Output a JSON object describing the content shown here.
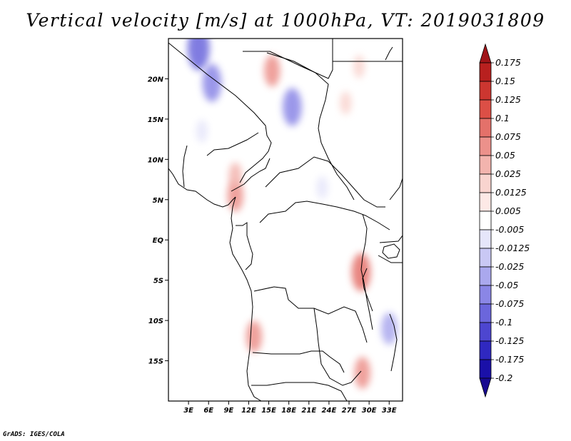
{
  "chart_data": {
    "type": "heatmap",
    "title": "Vertical velocity [m/s] at 1000hPa, VT: 2019031809",
    "xlabel": "",
    "ylabel": "",
    "x_ticks": [
      "3E",
      "6E",
      "9E",
      "12E",
      "15E",
      "18E",
      "21E",
      "24E",
      "27E",
      "30E",
      "33E"
    ],
    "y_ticks": [
      "20N",
      "15N",
      "10N",
      "5N",
      "EQ",
      "5S",
      "10S",
      "15S"
    ],
    "x_tick_values": [
      3,
      6,
      9,
      12,
      15,
      18,
      21,
      24,
      27,
      30,
      33
    ],
    "y_tick_values": [
      20,
      15,
      10,
      5,
      0,
      -5,
      -10,
      -15
    ],
    "xlim": [
      0,
      35
    ],
    "ylim": [
      -20,
      25
    ],
    "colorbar": {
      "levels": [
        "0.175",
        "0.15",
        "0.125",
        "0.1",
        "0.075",
        "0.05",
        "0.025",
        "0.0125",
        "0.005",
        "-0.005",
        "-0.0125",
        "-0.025",
        "-0.05",
        "-0.075",
        "-0.1",
        "-0.125",
        "-0.175",
        "-0.2"
      ],
      "colors": [
        "#a01418",
        "#b8201f",
        "#cc3630",
        "#dc4f46",
        "#e4716a",
        "#ec918b",
        "#f3b4ae",
        "#f9d4cf",
        "#fde9e6",
        "#ffffff",
        "#e6e6fa",
        "#c9c8f4",
        "#aaa8ee",
        "#8a86e6",
        "#6b66dc",
        "#4d46d0",
        "#2f28c0",
        "#1a10a8",
        "#180a90"
      ]
    },
    "anomalies": [
      {
        "lon": 4.5,
        "lat": 23.8,
        "value": -0.1
      },
      {
        "lon": 6.5,
        "lat": 19.5,
        "value": -0.075
      },
      {
        "lon": 18.5,
        "lat": 16.5,
        "value": -0.075
      },
      {
        "lon": 15.5,
        "lat": 21.0,
        "value": 0.05
      },
      {
        "lon": 28.8,
        "lat": -4.0,
        "value": 0.075
      },
      {
        "lon": 33.0,
        "lat": -11.0,
        "value": -0.05
      },
      {
        "lon": 10.0,
        "lat": 5.5,
        "value": 0.05
      },
      {
        "lon": 12.8,
        "lat": -12.0,
        "value": 0.05
      },
      {
        "lon": 29.0,
        "lat": -16.5,
        "value": 0.05
      },
      {
        "lon": 10.0,
        "lat": 8.0,
        "value": 0.025
      },
      {
        "lon": 26.5,
        "lat": 17.0,
        "value": 0.0125
      },
      {
        "lon": 28.5,
        "lat": 21.5,
        "value": 0.0125
      },
      {
        "lon": 5.0,
        "lat": 13.5,
        "value": -0.0125
      },
      {
        "lon": 23.0,
        "lat": 6.5,
        "value": -0.0125
      }
    ]
  },
  "credit": "GrADS: IGES/COLA"
}
